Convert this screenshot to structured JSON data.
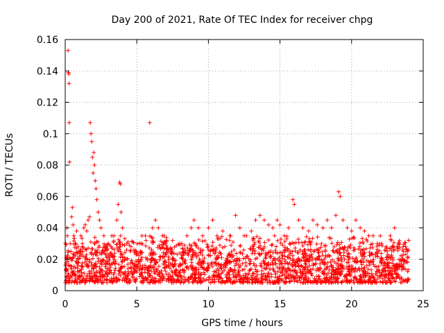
{
  "chart_data": {
    "type": "scatter",
    "title": "Day 200 of 2021, Rate Of TEC Index for receiver chpg",
    "xlabel": "GPS time / hours",
    "ylabel": "ROTI / TECUs",
    "xlim": [
      0,
      25
    ],
    "ylim": [
      0,
      0.16
    ],
    "xticks": [
      0,
      5,
      10,
      15,
      20,
      25
    ],
    "xtick_labels": [
      "0",
      "5",
      "10",
      "15",
      "20",
      "25"
    ],
    "yticks": [
      0,
      0.02,
      0.04,
      0.06,
      0.08,
      0.1,
      0.12,
      0.14,
      0.16
    ],
    "ytick_labels": [
      "0",
      "0.02",
      "0.04",
      "0.06",
      "0.08",
      "0.1",
      "0.12",
      "0.14",
      "0.16"
    ],
    "grid": true,
    "marker": "+",
    "color": "#ff0000",
    "series": [
      {
        "values_description_note_removed": true,
        "points": [
          [
            0.05,
            0.013
          ],
          [
            0.1,
            0.02
          ],
          [
            0.12,
            0.04
          ],
          [
            0.15,
            0.035
          ],
          [
            0.2,
            0.153
          ],
          [
            0.22,
            0.139
          ],
          [
            0.25,
            0.138
          ],
          [
            0.27,
            0.132
          ],
          [
            0.28,
            0.107
          ],
          [
            0.3,
            0.082
          ],
          [
            0.35,
            0.03
          ],
          [
            0.4,
            0.025
          ],
          [
            0.45,
            0.047
          ],
          [
            0.5,
            0.053
          ],
          [
            0.55,
            0.042
          ],
          [
            0.6,
            0.035
          ],
          [
            0.7,
            0.03
          ],
          [
            0.8,
            0.038
          ],
          [
            0.9,
            0.028
          ],
          [
            1.0,
            0.022
          ],
          [
            1.1,
            0.035
          ],
          [
            1.2,
            0.03
          ],
          [
            1.3,
            0.04
          ],
          [
            1.4,
            0.042
          ],
          [
            1.5,
            0.038
          ],
          [
            1.6,
            0.045
          ],
          [
            1.7,
            0.047
          ],
          [
            1.75,
            0.107
          ],
          [
            1.8,
            0.1
          ],
          [
            1.85,
            0.095
          ],
          [
            1.9,
            0.085
          ],
          [
            1.95,
            0.075
          ],
          [
            2.0,
            0.088
          ],
          [
            2.05,
            0.08
          ],
          [
            2.1,
            0.07
          ],
          [
            2.15,
            0.065
          ],
          [
            2.2,
            0.058
          ],
          [
            2.3,
            0.05
          ],
          [
            2.4,
            0.045
          ],
          [
            2.5,
            0.04
          ],
          [
            2.7,
            0.035
          ],
          [
            3.0,
            0.03
          ],
          [
            3.2,
            0.028
          ],
          [
            3.4,
            0.035
          ],
          [
            3.6,
            0.045
          ],
          [
            3.7,
            0.055
          ],
          [
            3.8,
            0.069
          ],
          [
            3.85,
            0.068
          ],
          [
            3.9,
            0.05
          ],
          [
            4.0,
            0.04
          ],
          [
            4.3,
            0.03
          ],
          [
            4.6,
            0.028
          ],
          [
            5.0,
            0.025
          ],
          [
            5.3,
            0.03
          ],
          [
            5.6,
            0.035
          ],
          [
            5.9,
            0.107
          ],
          [
            6.1,
            0.04
          ],
          [
            6.3,
            0.045
          ],
          [
            6.5,
            0.04
          ],
          [
            6.8,
            0.035
          ],
          [
            7.0,
            0.03
          ],
          [
            7.5,
            0.032
          ],
          [
            8.0,
            0.03
          ],
          [
            8.5,
            0.035
          ],
          [
            8.8,
            0.04
          ],
          [
            9.0,
            0.045
          ],
          [
            9.3,
            0.04
          ],
          [
            9.6,
            0.035
          ],
          [
            10.0,
            0.04
          ],
          [
            10.3,
            0.045
          ],
          [
            10.6,
            0.035
          ],
          [
            11.0,
            0.038
          ],
          [
            11.5,
            0.035
          ],
          [
            11.9,
            0.048
          ],
          [
            12.2,
            0.04
          ],
          [
            12.5,
            0.035
          ],
          [
            13.0,
            0.038
          ],
          [
            13.3,
            0.045
          ],
          [
            13.6,
            0.048
          ],
          [
            13.9,
            0.045
          ],
          [
            14.2,
            0.042
          ],
          [
            14.5,
            0.04
          ],
          [
            14.8,
            0.045
          ],
          [
            15.0,
            0.042
          ],
          [
            15.3,
            0.035
          ],
          [
            15.6,
            0.04
          ],
          [
            15.9,
            0.058
          ],
          [
            16.0,
            0.055
          ],
          [
            16.3,
            0.045
          ],
          [
            16.6,
            0.04
          ],
          [
            17.0,
            0.038
          ],
          [
            17.3,
            0.045
          ],
          [
            17.6,
            0.042
          ],
          [
            18.0,
            0.04
          ],
          [
            18.3,
            0.045
          ],
          [
            18.6,
            0.04
          ],
          [
            18.9,
            0.048
          ],
          [
            19.1,
            0.063
          ],
          [
            19.2,
            0.06
          ],
          [
            19.4,
            0.045
          ],
          [
            19.7,
            0.04
          ],
          [
            20.0,
            0.038
          ],
          [
            20.3,
            0.045
          ],
          [
            20.6,
            0.04
          ],
          [
            20.9,
            0.038
          ],
          [
            21.2,
            0.035
          ],
          [
            21.5,
            0.035
          ],
          [
            21.8,
            0.03
          ],
          [
            22.1,
            0.03
          ],
          [
            22.4,
            0.028
          ],
          [
            22.7,
            0.035
          ],
          [
            23.0,
            0.04
          ],
          [
            23.3,
            0.03
          ],
          [
            23.6,
            0.028
          ],
          [
            23.9,
            0.025
          ]
        ]
      }
    ],
    "dense_band": {
      "x_range": [
        0,
        24
      ],
      "y_low": 0.005,
      "y_high": 0.025
    }
  }
}
